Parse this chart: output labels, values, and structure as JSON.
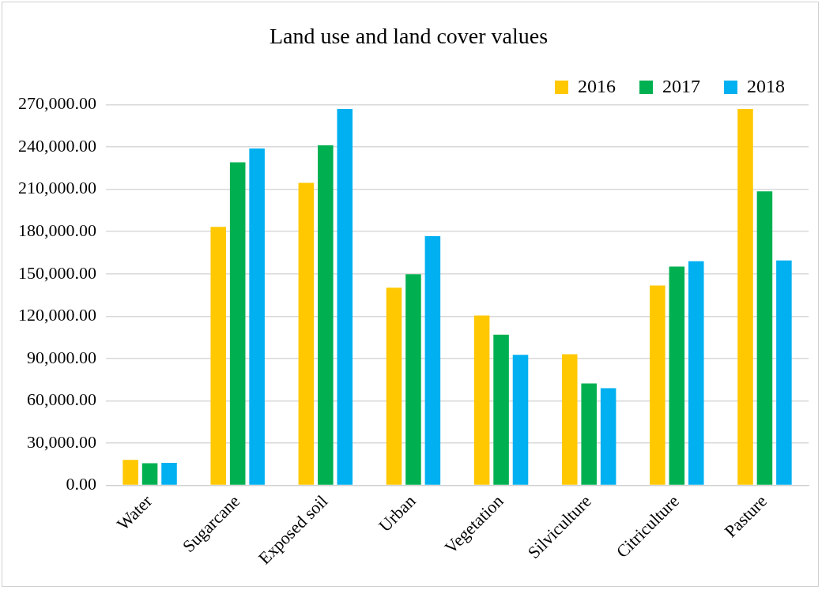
{
  "chart_data": {
    "type": "bar",
    "title": "Land use and land cover values",
    "categories": [
      "Water",
      "Sugarcane",
      "Exposed soil",
      "Urban",
      "Vegetation",
      "Silviculture",
      "Citriculture",
      "Pasture"
    ],
    "series": [
      {
        "name": "2016",
        "color": "#ffc800",
        "values": [
          18000,
          183300,
          214600,
          140200,
          120400,
          92900,
          141700,
          267000
        ]
      },
      {
        "name": "2017",
        "color": "#00b050",
        "values": [
          15600,
          229100,
          241200,
          149700,
          106900,
          72200,
          155200,
          208600
        ]
      },
      {
        "name": "2018",
        "color": "#00b0f0",
        "values": [
          15900,
          239000,
          267000,
          176700,
          92600,
          68900,
          158900,
          159500
        ]
      }
    ],
    "ylim": [
      0,
      270000
    ],
    "yticks": [
      {
        "value": 0,
        "label": "0.00"
      },
      {
        "value": 30000,
        "label": "30,000.00"
      },
      {
        "value": 60000,
        "label": "60,000.00"
      },
      {
        "value": 90000,
        "label": "90,000.00"
      },
      {
        "value": 120000,
        "label": "120,000.00"
      },
      {
        "value": 150000,
        "label": "150,000.00"
      },
      {
        "value": 180000,
        "label": "180,000.00"
      },
      {
        "value": 210000,
        "label": "210,000.00"
      },
      {
        "value": 240000,
        "label": "240,000.00"
      },
      {
        "value": 270000,
        "label": "270,000.00"
      }
    ],
    "grid": "y",
    "legend": "top right"
  }
}
